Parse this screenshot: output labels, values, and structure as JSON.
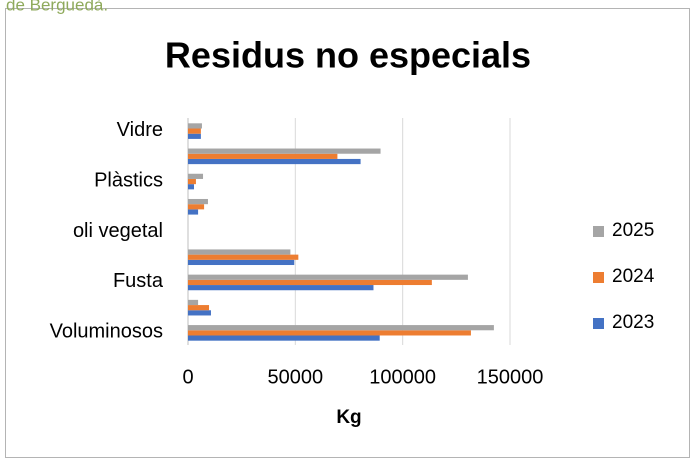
{
  "header": {
    "text": "de Berguedà."
  },
  "chart_data": {
    "type": "hbar",
    "title": "Residus no especials",
    "xlabel": "Kg",
    "categories": [
      "Voluminosos",
      null,
      "Fusta",
      null,
      "oli vegetal",
      null,
      "Plàstics",
      null,
      "Vidre"
    ],
    "series": [
      {
        "name": "2023",
        "color": "#4472c4",
        "values": [
          89300,
          10700,
          86400,
          49500,
          0,
          4700,
          2800,
          80400,
          6000
        ]
      },
      {
        "name": "2024",
        "color": "#ed7d31",
        "values": [
          131800,
          9800,
          113600,
          51400,
          0,
          7500,
          3700,
          69600,
          6000
        ]
      },
      {
        "name": "2025",
        "color": "#a5a5a5",
        "values": [
          142500,
          4700,
          130400,
          47700,
          0,
          9300,
          7000,
          89700,
          6500
        ]
      }
    ],
    "xlim": [
      0,
      150000
    ],
    "xticks": [
      0,
      50000,
      100000,
      150000
    ],
    "grid": true,
    "legend": "right"
  }
}
